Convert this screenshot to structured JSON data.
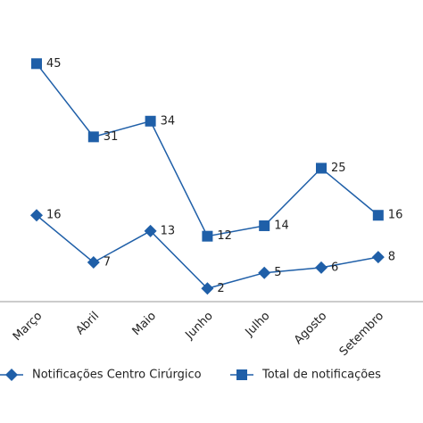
{
  "chart_data": {
    "type": "line",
    "categories": [
      "Março",
      "Abril",
      "Maio",
      "Junho",
      "Julho",
      "Agosto",
      "Setembro"
    ],
    "series": [
      {
        "name": "Notificações Centro Cirúrgico",
        "color": "#1f5fa8",
        "marker": "diamond",
        "values": [
          16,
          7,
          13,
          2,
          5,
          6,
          8
        ]
      },
      {
        "name": "Total de notificações",
        "color": "#1f5fa8",
        "marker": "square",
        "values": [
          45,
          31,
          34,
          12,
          14,
          25,
          16
        ]
      }
    ],
    "ylim": [
      0,
      57
    ],
    "grid": false,
    "legend": "bottom"
  }
}
